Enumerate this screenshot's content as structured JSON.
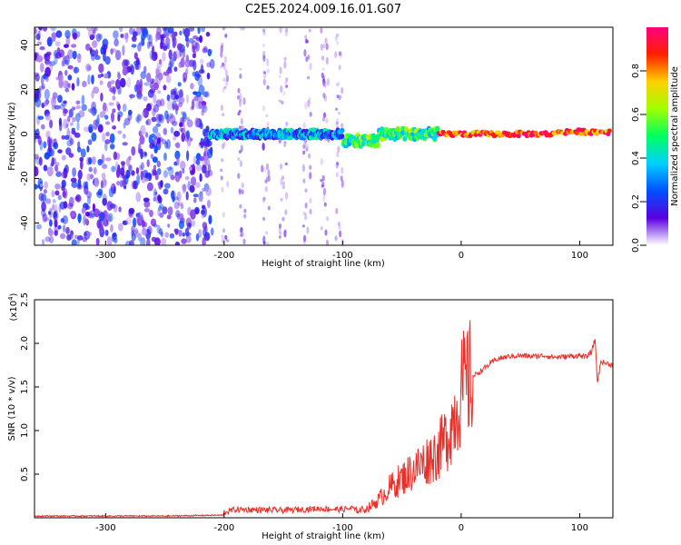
{
  "title": "C2E5.2024.009.16.01.G07",
  "chart_data": [
    {
      "type": "heatmap",
      "xlabel": "Height of straight line (km)",
      "ylabel": "Frequency (Hz)",
      "xlim": [
        -360,
        128
      ],
      "ylim": [
        -50,
        48
      ],
      "x_ticks": [
        -300,
        -200,
        -100,
        0,
        100
      ],
      "y_ticks": [
        -40,
        -20,
        0,
        20,
        40
      ],
      "colorbar": {
        "label": "Normalized spectral amplitude",
        "range": [
          0,
          1
        ],
        "ticks": [
          "0.0",
          "0.2",
          "0.4",
          "0.6",
          "0.8"
        ],
        "colors": [
          "#ffffff",
          "#5a00e0",
          "#0050ff",
          "#00d0ff",
          "#00ff60",
          "#a0ff00",
          "#ffd000",
          "#ff2000",
          "#ff0080"
        ]
      },
      "regions": [
        {
          "x_from": -360,
          "x_to": -210,
          "pattern": "broadband noise across all frequencies",
          "amplitude": 0.15
        },
        {
          "x_from": -210,
          "x_to": -100,
          "pattern": "sparse vertical noise streaks, signal line near 0 Hz",
          "amplitude": 0.3
        },
        {
          "x_from": -100,
          "x_to": -20,
          "pattern": "signal line near 0 Hz with side lobes",
          "amplitude": 0.5
        },
        {
          "x_from": -20,
          "x_to": 128,
          "pattern": "strong narrow signal line near 0 Hz",
          "amplitude": 0.85
        }
      ]
    },
    {
      "type": "line",
      "xlabel": "Height of straight line (km)",
      "ylabel": "SNR (10 * v/v)",
      "y_multiplier": "(x10",
      "y_multiplier_exp": "4",
      "y_multiplier_close": ")",
      "xlim": [
        -360,
        128
      ],
      "ylim": [
        0,
        2.5
      ],
      "x_ticks": [
        -300,
        -200,
        -100,
        0,
        100
      ],
      "y_ticks": [
        "0.5",
        "1.0",
        "1.5",
        "2.0",
        "2.5"
      ],
      "color": "#e8302a",
      "series": [
        {
          "x": [
            -360,
            -300,
            -250,
            -200,
            -190,
            -150,
            -120,
            -100,
            -80,
            -70,
            -60,
            -50,
            -40,
            -30,
            -20,
            -15,
            -10,
            -5,
            0,
            5,
            10,
            20,
            30,
            40,
            50,
            60,
            70,
            80,
            90,
            100,
            105,
            110,
            113,
            115,
            118,
            120,
            128
          ],
          "y": [
            0.02,
            0.02,
            0.02,
            0.03,
            0.06,
            0.05,
            0.07,
            0.06,
            0.1,
            0.2,
            0.35,
            0.45,
            0.55,
            0.65,
            0.75,
            0.85,
            1.0,
            1.2,
            1.45,
            1.55,
            1.62,
            1.72,
            1.82,
            1.85,
            1.86,
            1.85,
            1.86,
            1.84,
            1.85,
            1.86,
            1.84,
            1.9,
            2.05,
            1.55,
            1.8,
            1.78,
            1.75
          ]
        }
      ]
    }
  ]
}
